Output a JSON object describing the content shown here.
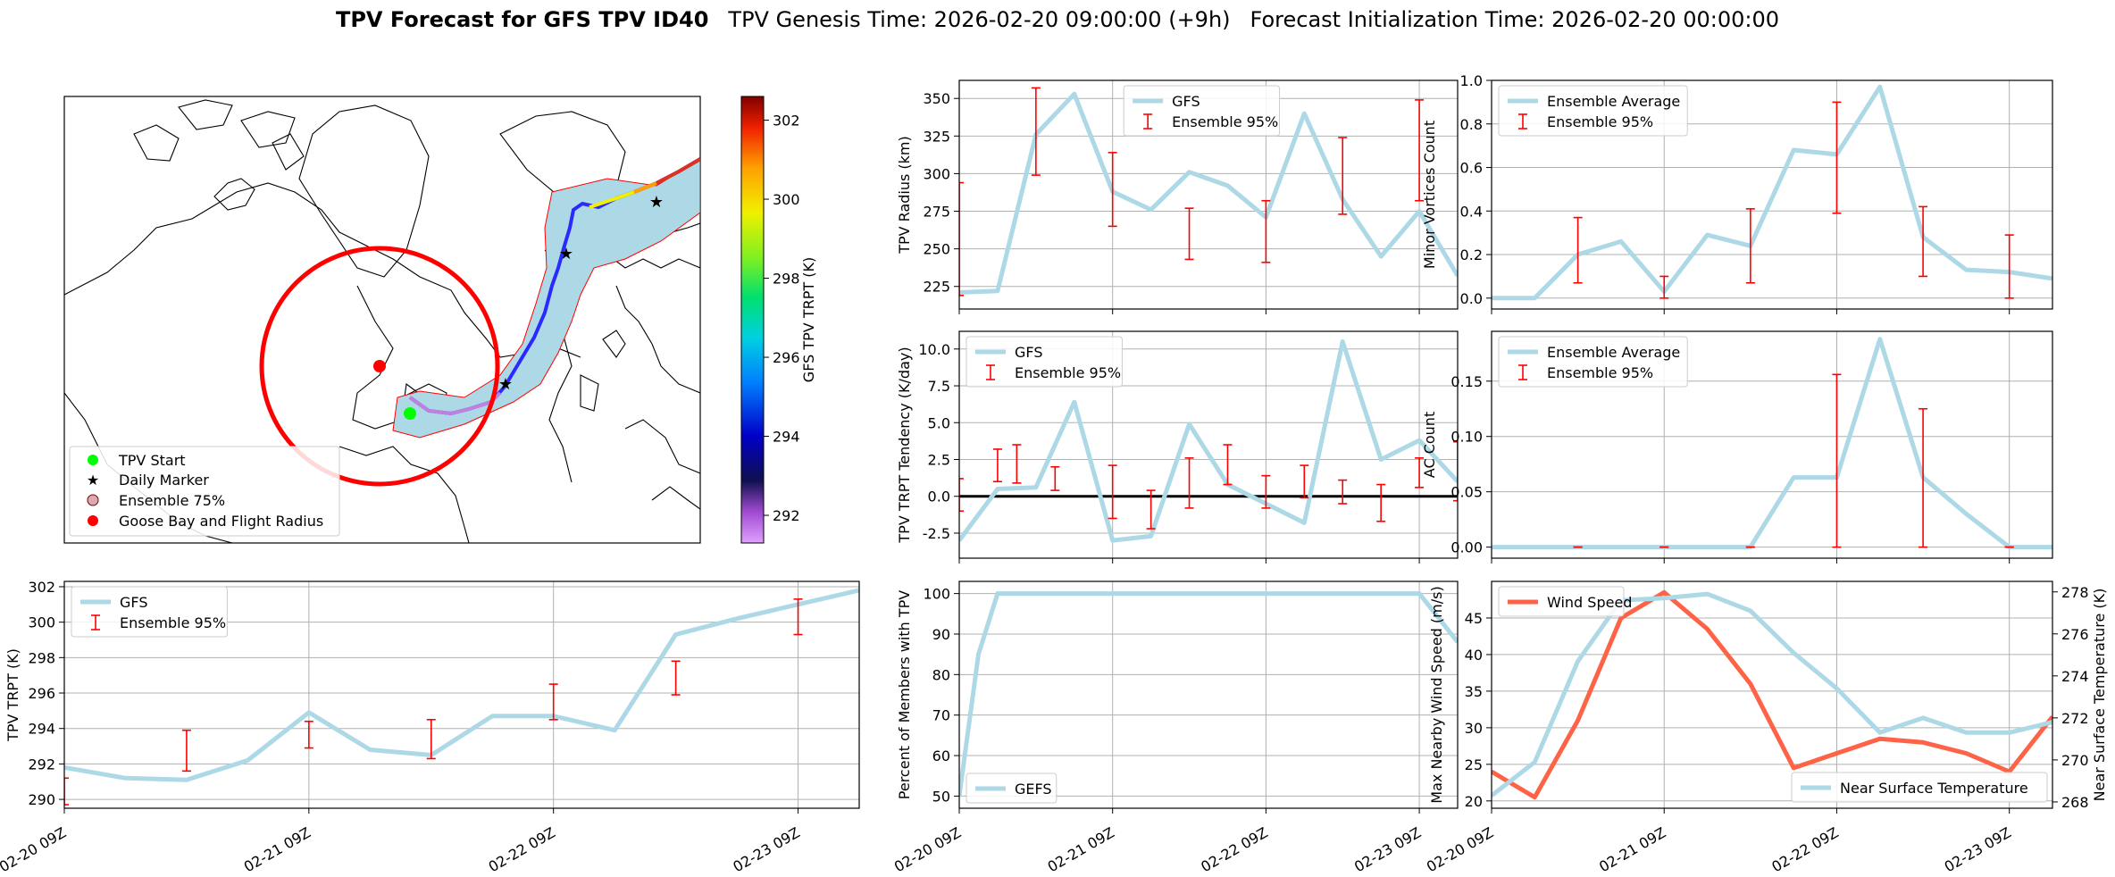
{
  "figure": {
    "title_bold": "TPV Forecast for GFS TPV ID40",
    "title_genesis": "TPV Genesis Time: 2026-02-20 09:00:00 (+9h)",
    "title_init": "Forecast Initialization Time: 2026-02-20 00:00:00"
  },
  "colors": {
    "gfs_line": "#add8e6",
    "error_bar": "#ff0000",
    "wind_line": "#ff6347",
    "temp_axis": "#4169e1",
    "grid": "#b0b0b0",
    "ensemble_fill": "#add8e6",
    "start_marker": "#00ff00",
    "daily_marker": "#ff00ff",
    "goose_bay": "#ff0000"
  },
  "map": {
    "legend": [
      "TPV Start",
      "Daily Marker",
      "Ensemble 75%",
      "Goose Bay and Flight Radius"
    ],
    "colorbar_label": "GFS TPV TRPT (K)",
    "colorbar_ticks": [
      292,
      294,
      296,
      298,
      300,
      302
    ],
    "colorbar_range": [
      291.3,
      302.6
    ]
  },
  "time_axis": {
    "ticks": [
      "02-20 09Z",
      "02-21 09Z",
      "02-22 09Z",
      "02-23 09Z"
    ],
    "tick_hours": [
      0,
      24,
      48,
      72
    ]
  },
  "chart_data": [
    {
      "id": "radius",
      "type": "line",
      "title": "",
      "xlabel": "",
      "ylabel": "TPV Radius (km)",
      "xlim": [
        0,
        78
      ],
      "ylim": [
        210,
        362
      ],
      "yticks": [
        225,
        250,
        275,
        300,
        325,
        350
      ],
      "show_xticklabels": false,
      "legend_position": "upper-center",
      "series": [
        {
          "name": "GFS",
          "x": [
            0,
            6,
            12,
            18,
            24,
            30,
            36,
            42,
            48,
            54,
            60,
            66,
            72,
            78
          ],
          "values": [
            221,
            222,
            326,
            353,
            288,
            276,
            301,
            292,
            271,
            340,
            283,
            245,
            275,
            232
          ]
        }
      ],
      "errorbars": {
        "name": "Ensemble 95%",
        "x": [
          0,
          12,
          24,
          36,
          48,
          60,
          72
        ],
        "low": [
          219,
          299,
          265,
          243,
          241,
          273,
          282
        ],
        "high": [
          294,
          357,
          314,
          277,
          282,
          324,
          349
        ]
      }
    },
    {
      "id": "minor",
      "type": "line",
      "title": "",
      "xlabel": "",
      "ylabel": "Minor Vortices Count",
      "xlim": [
        0,
        78
      ],
      "ylim": [
        -0.05,
        1.0
      ],
      "yticks": [
        0.0,
        0.2,
        0.4,
        0.6,
        0.8,
        1.0
      ],
      "show_xticklabels": false,
      "legend_position": "upper-left",
      "series": [
        {
          "name": "Ensemble Average",
          "x": [
            0,
            6,
            12,
            18,
            24,
            30,
            36,
            42,
            48,
            54,
            60,
            66,
            72,
            78
          ],
          "values": [
            0,
            0,
            0.2,
            0.26,
            0.03,
            0.29,
            0.24,
            0.68,
            0.66,
            0.97,
            0.28,
            0.13,
            0.12,
            0.09
          ]
        }
      ],
      "errorbars": {
        "name": "Ensemble 95%",
        "x": [
          12,
          24,
          36,
          48,
          60,
          72
        ],
        "low": [
          0.07,
          0,
          0.07,
          0.39,
          0.1,
          0
        ],
        "high": [
          0.37,
          0.1,
          0.41,
          0.9,
          0.42,
          0.29
        ]
      }
    },
    {
      "id": "tendency",
      "type": "line",
      "title": "",
      "xlabel": "",
      "ylabel": "TPV TRPT Tendency (K/day)",
      "xlim": [
        0,
        78
      ],
      "ylim": [
        -4.2,
        11.2
      ],
      "yticks": [
        -2.5,
        0.0,
        2.5,
        5.0,
        7.5,
        10.0
      ],
      "zero_line": true,
      "show_xticklabels": false,
      "legend_position": "upper-left",
      "series": [
        {
          "name": "GFS",
          "x": [
            0,
            6,
            12,
            18,
            24,
            30,
            36,
            42,
            48,
            54,
            60,
            66,
            72,
            78
          ],
          "values": [
            -3.0,
            0.5,
            0.6,
            6.4,
            -3.0,
            -2.7,
            4.9,
            0.8,
            -0.5,
            -1.8,
            10.5,
            2.5,
            3.8,
            1.0
          ]
        }
      ],
      "errorbars": {
        "name": "Ensemble 95%",
        "x": [
          0,
          6,
          9,
          15,
          24,
          30,
          36,
          42,
          48,
          54,
          60,
          66,
          72,
          78
        ],
        "low": [
          -1.0,
          1.0,
          0.9,
          0.4,
          -1.5,
          -2.2,
          -0.8,
          0.8,
          -0.8,
          -0.1,
          -0.5,
          -1.7,
          0.6,
          -0.3
        ],
        "high": [
          1.2,
          3.2,
          3.5,
          2.0,
          2.1,
          0.4,
          2.6,
          3.5,
          1.4,
          2.1,
          1.1,
          0.8,
          2.6,
          3.7
        ]
      }
    },
    {
      "id": "ac",
      "type": "line",
      "title": "",
      "xlabel": "",
      "ylabel": "AC Count",
      "xlim": [
        0,
        78
      ],
      "ylim": [
        -0.01,
        0.195
      ],
      "yticks": [
        0.0,
        0.05,
        0.1,
        0.15
      ],
      "show_xticklabels": false,
      "legend_position": "upper-left",
      "series": [
        {
          "name": "Ensemble Average",
          "x": [
            0,
            6,
            12,
            18,
            24,
            30,
            36,
            42,
            48,
            54,
            60,
            66,
            72,
            78
          ],
          "values": [
            0,
            0,
            0,
            0,
            0,
            0,
            0,
            0.063,
            0.063,
            0.188,
            0.063,
            0.03,
            0,
            0
          ]
        }
      ],
      "errorbars": {
        "name": "Ensemble 95%",
        "x": [
          12,
          24,
          36,
          48,
          60,
          72
        ],
        "low": [
          0,
          0,
          0,
          0,
          0,
          0
        ],
        "high": [
          0,
          0,
          0,
          0.156,
          0.125,
          0
        ]
      }
    },
    {
      "id": "trpt",
      "type": "line",
      "title": "",
      "xlabel": "",
      "ylabel": "TPV TRPT (K)",
      "xlim": [
        0,
        78
      ],
      "ylim": [
        289.5,
        302.3
      ],
      "yticks": [
        290,
        292,
        294,
        296,
        298,
        300,
        302
      ],
      "show_xticklabels": true,
      "legend_position": "upper-left",
      "series": [
        {
          "name": "GFS",
          "x": [
            0,
            6,
            12,
            18,
            24,
            30,
            36,
            42,
            48,
            54,
            60,
            66,
            72,
            78
          ],
          "values": [
            291.8,
            291.2,
            291.1,
            292.2,
            294.9,
            292.8,
            292.5,
            294.7,
            294.7,
            293.9,
            299.3,
            300.2,
            301.0,
            301.8
          ]
        }
      ],
      "errorbars": {
        "name": "Ensemble 95%",
        "x": [
          0,
          12,
          24,
          36,
          48,
          60,
          72
        ],
        "low": [
          289.7,
          291.6,
          292.9,
          292.3,
          294.5,
          295.9,
          299.3
        ],
        "high": [
          291.2,
          293.9,
          294.4,
          294.5,
          296.5,
          297.8,
          301.3
        ]
      }
    },
    {
      "id": "percent",
      "type": "line",
      "title": "",
      "xlabel": "",
      "ylabel": "Percent of Members with TPV",
      "xlim": [
        0,
        78
      ],
      "ylim": [
        47,
        103
      ],
      "yticks": [
        50,
        60,
        70,
        80,
        90,
        100
      ],
      "show_xticklabels": true,
      "legend_position": "lower-left",
      "series": [
        {
          "name": "GEFS",
          "x": [
            0,
            3,
            6,
            12,
            18,
            24,
            30,
            36,
            42,
            48,
            54,
            60,
            66,
            72,
            78
          ],
          "values": [
            50,
            85,
            100,
            100,
            100,
            100,
            100,
            100,
            100,
            100,
            100,
            100,
            100,
            100,
            88
          ]
        }
      ]
    },
    {
      "id": "wind_temp",
      "type": "line",
      "title": "",
      "xlabel": "",
      "ylabel": "Max Nearby Wind Speed (m/s)",
      "ylabel_right": "Near Surface Temperature (K)",
      "xlim": [
        0,
        78
      ],
      "ylim": [
        19,
        50
      ],
      "ylim_right": [
        267.7,
        278.5
      ],
      "yticks": [
        20,
        25,
        30,
        35,
        40,
        45
      ],
      "yticks_right": [
        268,
        270,
        272,
        274,
        276,
        278
      ],
      "show_xticklabels": true,
      "series": [
        {
          "name": "Wind Speed",
          "axis": "left",
          "legend_position": "upper-left",
          "x": [
            0,
            6,
            12,
            18,
            24,
            30,
            36,
            42,
            48,
            54,
            60,
            66,
            72,
            78
          ],
          "values": [
            24,
            20.5,
            31,
            45,
            48.5,
            43.5,
            36,
            24.5,
            26.5,
            28.5,
            28,
            26.5,
            24,
            31.5
          ]
        },
        {
          "name": "Near Surface Temperature",
          "axis": "right",
          "legend_position": "lower-right",
          "x": [
            0,
            6,
            12,
            18,
            24,
            30,
            36,
            42,
            48,
            54,
            60,
            66,
            72,
            78
          ],
          "values": [
            268.3,
            269.9,
            274.7,
            277.6,
            277.7,
            277.9,
            277.1,
            275.1,
            273.4,
            271.3,
            272.0,
            271.3,
            271.3,
            271.8
          ]
        }
      ]
    }
  ]
}
